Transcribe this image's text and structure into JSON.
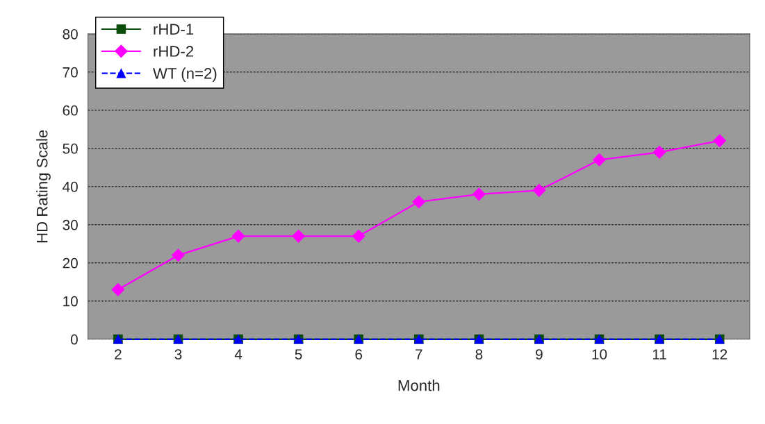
{
  "chart_data": {
    "type": "line",
    "xlabel": "Month",
    "ylabel": "HD Rating Scale",
    "categories": [
      "2",
      "3",
      "4",
      "5",
      "6",
      "7",
      "8",
      "9",
      "10",
      "11",
      "12"
    ],
    "series": [
      {
        "name": "rHD-1",
        "color": "#0b4d0b",
        "marker": "square",
        "line_style": "solid",
        "values": [
          0,
          0,
          0,
          0,
          0,
          0,
          0,
          0,
          0,
          0,
          0
        ]
      },
      {
        "name": "rHD-2",
        "color": "#ff00ff",
        "marker": "diamond",
        "line_style": "solid",
        "values": [
          13,
          22,
          27,
          27,
          27,
          36,
          38,
          39,
          47,
          49,
          52
        ]
      },
      {
        "name": "WT (n=2)",
        "color": "#0000ff",
        "marker": "triangle",
        "line_style": "dashed",
        "values": [
          0,
          0,
          0,
          0,
          0,
          0,
          0,
          0,
          0,
          0,
          0
        ]
      }
    ],
    "ylim": [
      0,
      80
    ],
    "yticks": [
      0,
      10,
      20,
      30,
      40,
      50,
      60,
      70,
      80
    ],
    "grid": "y",
    "legend": "top left"
  }
}
